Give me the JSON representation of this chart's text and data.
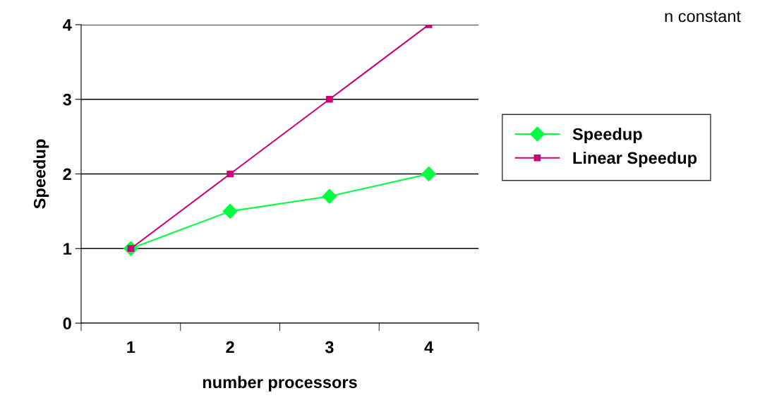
{
  "chart_data": {
    "type": "line",
    "xlabel": "number processors",
    "ylabel": "Speedup",
    "categories": [
      "1",
      "2",
      "3",
      "4"
    ],
    "series": [
      {
        "name": "Speedup",
        "color": "#00ff40",
        "values": [
          1,
          1.5,
          1.7,
          2
        ],
        "marker": "diamond"
      },
      {
        "name": "Linear Speedup",
        "color": "#cc0077",
        "values": [
          1,
          2,
          3,
          4
        ],
        "marker": "square"
      }
    ],
    "ylim": [
      0,
      4
    ],
    "yticks": [
      0,
      1,
      2,
      3,
      4
    ],
    "grid": "y",
    "legend": "right",
    "annotations": [
      "n constant"
    ]
  }
}
